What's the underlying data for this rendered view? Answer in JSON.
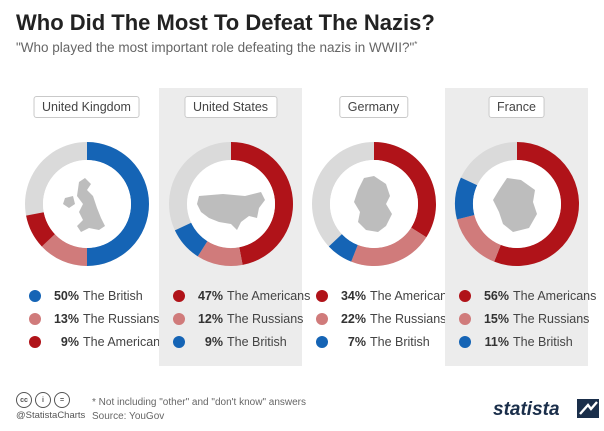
{
  "title": "Who Did The Most To Defeat The Nazis?",
  "subtitle": "\"Who played the most important role defeating the nazis in WWII?\"",
  "subtitle_mark": "*",
  "colors": {
    "blue": "#1564b5",
    "pink": "#d07b7b",
    "darkred": "#b01319",
    "grey": "#dadada"
  },
  "chart_data": [
    {
      "type": "pie",
      "country": "United Kingdom",
      "silhouette": "uk-map-icon",
      "slices": [
        {
          "label": "The British",
          "pct": "50%",
          "value": 50,
          "color": "#1564b5"
        },
        {
          "label": "The Russians",
          "pct": "13%",
          "value": 13,
          "color": "#d07b7b"
        },
        {
          "label": "The Americans",
          "pct": "9%",
          "value": 9,
          "color": "#b01319"
        }
      ]
    },
    {
      "type": "pie",
      "country": "United States",
      "silhouette": "usa-map-icon",
      "slices": [
        {
          "label": "The Americans",
          "pct": "47%",
          "value": 47,
          "color": "#b01319"
        },
        {
          "label": "The Russians",
          "pct": "12%",
          "value": 12,
          "color": "#d07b7b"
        },
        {
          "label": "The British",
          "pct": "9%",
          "value": 9,
          "color": "#1564b5"
        }
      ]
    },
    {
      "type": "pie",
      "country": "Germany",
      "silhouette": "germany-map-icon",
      "slices": [
        {
          "label": "The Americans",
          "pct": "34%",
          "value": 34,
          "color": "#b01319"
        },
        {
          "label": "The Russians",
          "pct": "22%",
          "value": 22,
          "color": "#d07b7b"
        },
        {
          "label": "The British",
          "pct": "7%",
          "value": 7,
          "color": "#1564b5"
        }
      ]
    },
    {
      "type": "pie",
      "country": "France",
      "silhouette": "france-map-icon",
      "slices": [
        {
          "label": "The Americans",
          "pct": "56%",
          "value": 56,
          "color": "#b01319"
        },
        {
          "label": "The Russians",
          "pct": "15%",
          "value": 15,
          "color": "#d07b7b"
        },
        {
          "label": "The British",
          "pct": "11%",
          "value": 11,
          "color": "#1564b5"
        }
      ]
    }
  ],
  "footer": {
    "handle": "@StatistaCharts",
    "note": "* Not including \"other\" and \"don't know\" answers",
    "source": "Source: YouGov",
    "brand": "statista"
  }
}
